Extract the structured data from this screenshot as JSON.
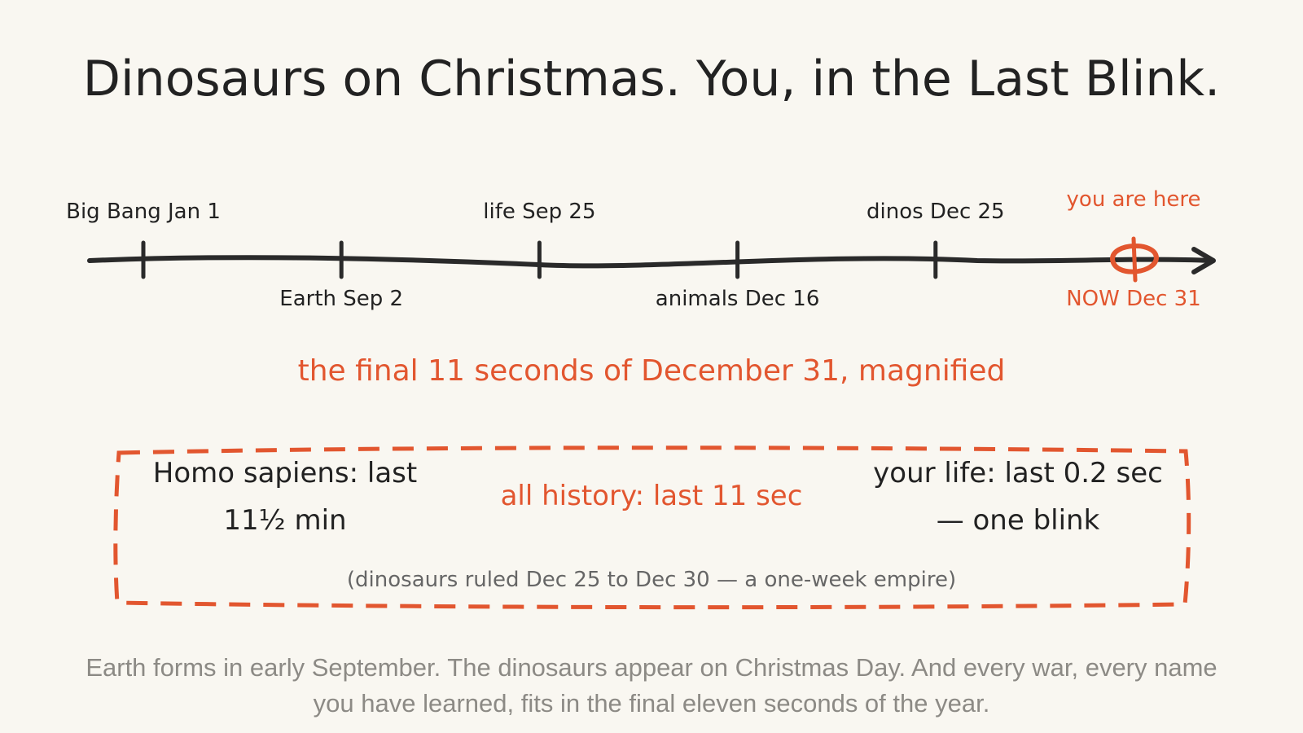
{
  "header": {
    "title": "Dinosaurs on Christmas. You, in the Last Blink."
  },
  "timeline": {
    "events": [
      "Big Bang Jan 1",
      "Earth Sep 2",
      "life Sep 25",
      "animals Dec 16",
      "dinos Dec 25",
      "NOW Dec 31"
    ],
    "marker_label": "you are here"
  },
  "magnified": {
    "heading": "the final 11 seconds of December 31, magnified",
    "left": "Homo sapiens: last 11½ min",
    "center": "all history: last 11 sec",
    "right": "your life: last 0.2 sec — one blink",
    "note": "(dinosaurs ruled Dec 25 to Dec 30 — a one-week empire)"
  },
  "caption": "Earth forms in early September. The dinosaurs appear on Christmas Day. And every war, every name you have learned, fits in the final eleven seconds of the year."
}
